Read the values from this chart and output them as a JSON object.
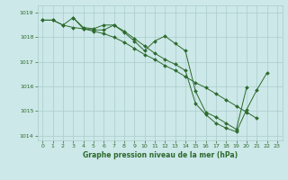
{
  "x": [
    0,
    1,
    2,
    3,
    4,
    5,
    6,
    7,
    8,
    9,
    10,
    11,
    12,
    13,
    14,
    15,
    16,
    17,
    18,
    19,
    20,
    21,
    22,
    23
  ],
  "series1": [
    1018.7,
    1018.7,
    1018.5,
    1018.8,
    1018.35,
    1018.3,
    1018.3,
    1018.5,
    1018.2,
    1017.85,
    1017.45,
    1017.85,
    1018.05,
    1017.75,
    1017.45,
    1015.8,
    1014.95,
    1014.75,
    1014.5,
    1014.25,
    1015.95,
    null,
    null,
    null
  ],
  "series2": [
    1018.7,
    1018.7,
    1018.5,
    1018.4,
    1018.35,
    1018.25,
    1018.15,
    1018.0,
    1017.8,
    1017.55,
    1017.3,
    1017.1,
    1016.85,
    1016.65,
    1016.4,
    1016.15,
    1015.95,
    1015.7,
    1015.45,
    1015.2,
    1014.95,
    1014.7,
    null,
    null
  ],
  "series3": [
    null,
    null,
    null,
    1018.8,
    1018.4,
    1018.35,
    1018.5,
    1018.5,
    1018.25,
    1017.95,
    1017.65,
    1017.35,
    1017.1,
    1016.9,
    1016.65,
    1015.3,
    1014.85,
    1014.5,
    1014.3,
    1014.15,
    1015.05,
    1015.85,
    1016.55,
    null
  ],
  "ylim": [
    1013.8,
    1019.3
  ],
  "yticks": [
    1014,
    1015,
    1016,
    1017,
    1018,
    1019
  ],
  "xlim": [
    -0.5,
    23.5
  ],
  "xticks": [
    0,
    1,
    2,
    3,
    4,
    5,
    6,
    7,
    8,
    9,
    10,
    11,
    12,
    13,
    14,
    15,
    16,
    17,
    18,
    19,
    20,
    21,
    22,
    23
  ],
  "line_color": "#2d6a2d",
  "bg_color": "#cce8e8",
  "grid_color": "#aacccc",
  "xlabel": "Graphe pression niveau de la mer (hPa)",
  "xlabel_color": "#2d6a2d",
  "tick_color": "#2d6a2d",
  "marker": "D",
  "markersize": 2.0,
  "linewidth": 0.7
}
